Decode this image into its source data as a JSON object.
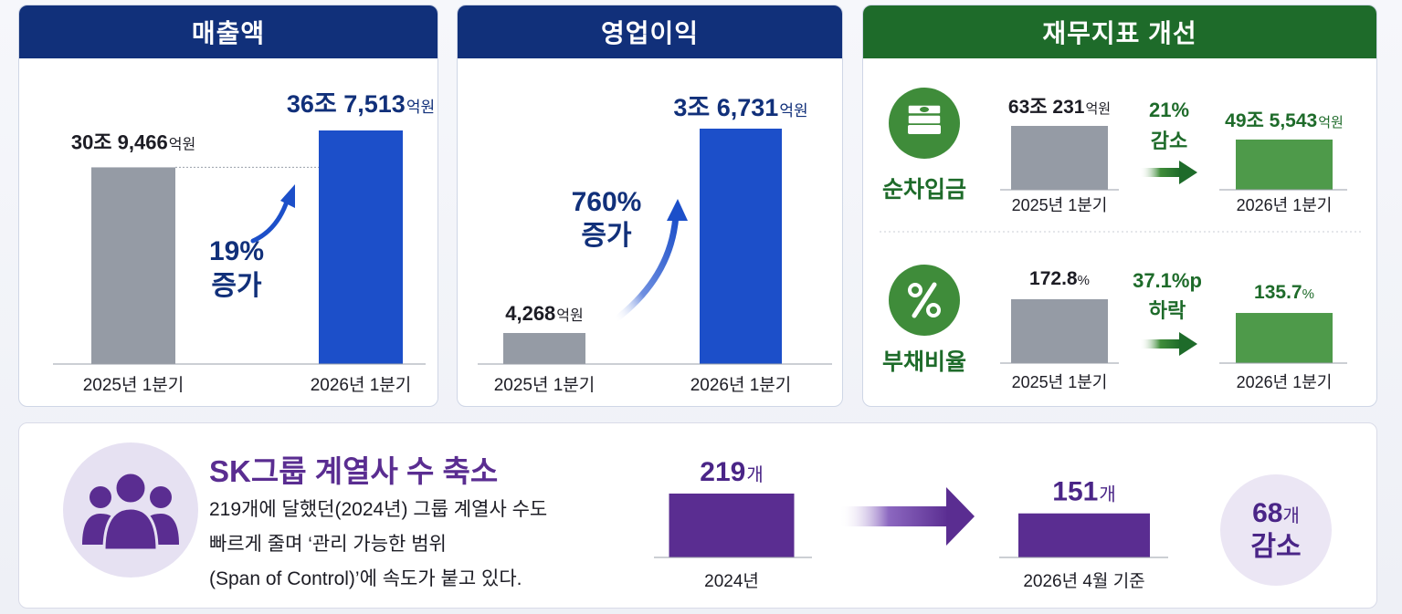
{
  "revenue": {
    "title": "매출액",
    "bars": [
      {
        "label": "2025년 1분기",
        "num": "30조 9,466",
        "unit": "억원"
      },
      {
        "label": "2026년 1분기",
        "num": "36조 7,513",
        "unit": "억원"
      }
    ],
    "change_pct": "19%",
    "change_word": "증가"
  },
  "operating_profit": {
    "title": "영업이익",
    "bars": [
      {
        "label": "2025년 1분기",
        "num": "4,268",
        "unit": "억원"
      },
      {
        "label": "2026년 1분기",
        "num": "3조 6,731",
        "unit": "억원"
      }
    ],
    "change_pct": "760%",
    "change_word": "증가"
  },
  "financial": {
    "title": "재무지표 개선",
    "net_debt": {
      "name": "순차입금",
      "icon": "money-stack-icon",
      "before": {
        "label": "2025년 1분기",
        "num": "63조 231",
        "unit": "억원"
      },
      "after": {
        "label": "2026년 1분기",
        "num": "49조 5,543",
        "unit": "억원"
      },
      "change_pct": "21%",
      "change_word": "감소"
    },
    "debt_ratio": {
      "name": "부채비율",
      "icon": "percent-icon",
      "before": {
        "label": "2025년 1분기",
        "num": "172.8",
        "unit": "%"
      },
      "after": {
        "label": "2026년 1분기",
        "num": "135.7",
        "unit": "%"
      },
      "change_pct": "37.1%p",
      "change_word": "하락"
    }
  },
  "affiliates": {
    "title": "SK그룹 계열사 수 축소",
    "desc_lines": [
      "219개에 달했던(2024년) 그룹 계열사 수도",
      "빠르게 줄며 ‘관리 가능한 범위",
      "(Span of Control)’에 속도가 붙고 있다."
    ],
    "before": {
      "label": "2024년",
      "num": "219",
      "unit": "개"
    },
    "after": {
      "label": "2026년 4월 기준",
      "num": "151",
      "unit": "개"
    },
    "reduction_num": "68",
    "reduction_unit": "개",
    "reduction_word": "감소",
    "icon": "people-group-icon"
  },
  "colors": {
    "navy": "#11307a",
    "blue_bar": "#1c4fc9",
    "gray_bar": "#959ba5",
    "green_header": "#1e6b2a",
    "green_bar": "#4e9a4a",
    "purple": "#5a2d91"
  },
  "chart_data": [
    {
      "type": "bar",
      "title": "매출액",
      "categories": [
        "2025년 1분기",
        "2026년 1분기"
      ],
      "values": [
        309466,
        367513
      ],
      "unit": "억원",
      "annotation": "19% 증가"
    },
    {
      "type": "bar",
      "title": "영업이익",
      "categories": [
        "2025년 1분기",
        "2026년 1분기"
      ],
      "values": [
        4268,
        36731
      ],
      "unit": "억원",
      "annotation": "760% 증가"
    },
    {
      "type": "bar",
      "title": "순차입금",
      "categories": [
        "2025년 1분기",
        "2026년 1분기"
      ],
      "values": [
        630231,
        495543
      ],
      "unit": "억원",
      "annotation": "21% 감소"
    },
    {
      "type": "bar",
      "title": "부채비율",
      "categories": [
        "2025년 1분기",
        "2026년 1분기"
      ],
      "values": [
        172.8,
        135.7
      ],
      "unit": "%",
      "annotation": "37.1%p 하락"
    },
    {
      "type": "bar",
      "title": "SK그룹 계열사 수 축소",
      "categories": [
        "2024년",
        "2026년 4월 기준"
      ],
      "values": [
        219,
        151
      ],
      "unit": "개",
      "annotation": "68개 감소"
    }
  ]
}
